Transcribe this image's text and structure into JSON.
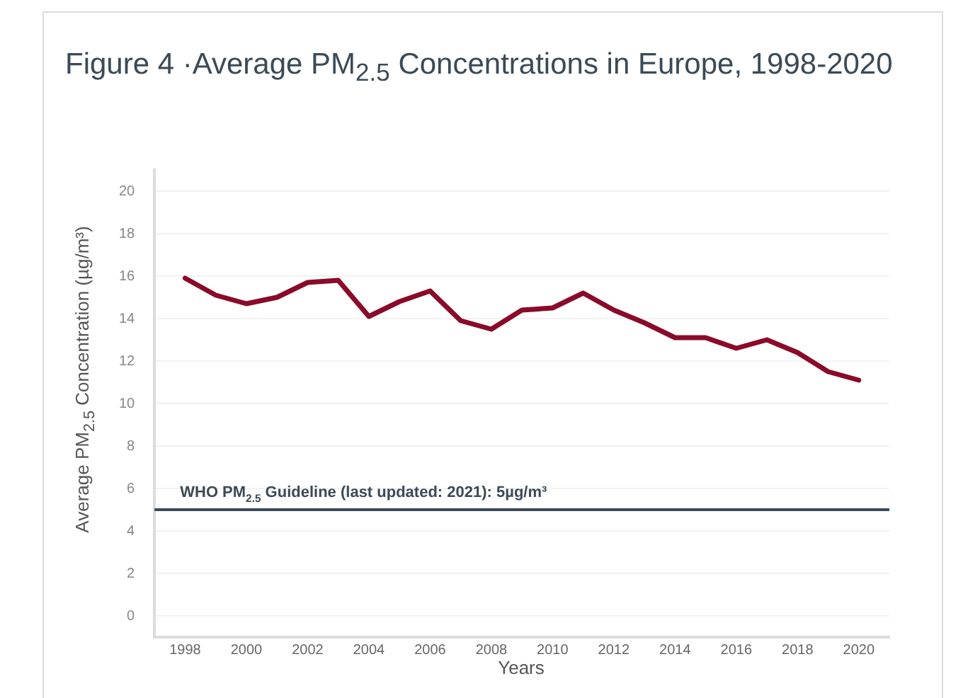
{
  "chart_data": {
    "type": "line",
    "title": "Figure 4 ·Average PM$_{2.5}$ Concentrations in Europe, 1998-2020",
    "xlabel": "Years",
    "ylabel": "Average PM$_{2.5}$ Concentration (µg/m³)",
    "x": [
      1998,
      1999,
      2000,
      2001,
      2002,
      2003,
      2004,
      2005,
      2006,
      2007,
      2008,
      2009,
      2010,
      2011,
      2012,
      2013,
      2014,
      2015,
      2016,
      2017,
      2018,
      2019,
      2020
    ],
    "series": [
      {
        "color": "#8a0a2a",
        "values": [
          15.9,
          15.1,
          14.7,
          15.0,
          15.7,
          15.8,
          14.1,
          14.8,
          15.3,
          13.9,
          13.5,
          14.4,
          14.5,
          15.2,
          14.4,
          13.8,
          13.1,
          13.1,
          12.6,
          13.0,
          12.4,
          11.5,
          11.1
        ]
      }
    ],
    "xlim": [
      1997,
      2021
    ],
    "xticks": [
      1998,
      2000,
      2002,
      2004,
      2006,
      2008,
      2010,
      2012,
      2014,
      2016,
      2018,
      2020
    ],
    "ylim": [
      -1,
      21
    ],
    "yticks": [
      0,
      2,
      4,
      6,
      8,
      10,
      12,
      14,
      16,
      18,
      20
    ],
    "ref_lines": [
      {
        "axis": "y",
        "value": 5,
        "label": "WHO PM$_{2.5}$ Guideline (last updated: 2021): 5µg/m³",
        "color": "#3b4a56"
      }
    ],
    "grid": "y",
    "legend": false,
    "marker": "none",
    "line_style": "solid"
  }
}
